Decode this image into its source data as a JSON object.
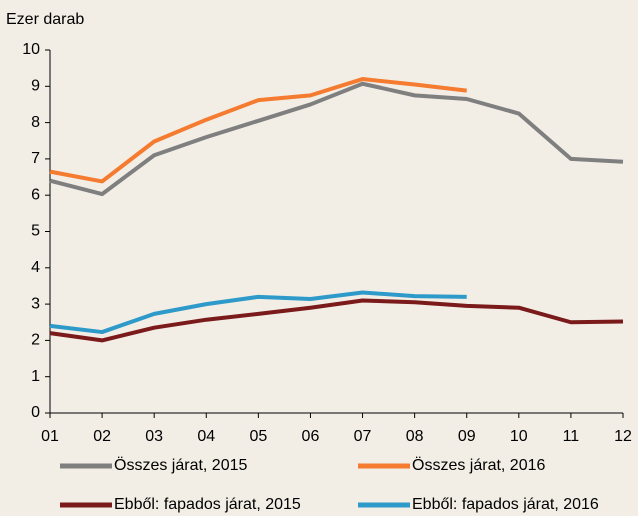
{
  "chart_data": {
    "type": "line",
    "y_axis_label": "Ezer darab",
    "categories": [
      "01",
      "02",
      "03",
      "04",
      "05",
      "06",
      "07",
      "08",
      "09",
      "10",
      "11",
      "12"
    ],
    "series": [
      {
        "name": "Összes járat, 2015",
        "color": "#7f7f7f",
        "values": [
          6.4,
          6.03,
          7.1,
          7.6,
          8.05,
          8.5,
          9.07,
          8.75,
          8.65,
          8.25,
          7.0,
          6.92
        ]
      },
      {
        "name": "Összes járat, 2016",
        "color": "#f47b30",
        "values": [
          6.65,
          6.38,
          7.48,
          8.08,
          8.62,
          8.75,
          9.2,
          9.05,
          8.88,
          null,
          null,
          null
        ]
      },
      {
        "name": "Ebből: fapados járat, 2015",
        "color": "#7b1a1a",
        "values": [
          2.2,
          2.0,
          2.35,
          2.57,
          2.73,
          2.9,
          3.1,
          3.05,
          2.95,
          2.9,
          2.5,
          2.52
        ]
      },
      {
        "name": "Ebből: fapados járat, 2016",
        "color": "#2e9ac9",
        "values": [
          2.4,
          2.23,
          2.73,
          3.0,
          3.2,
          3.14,
          3.32,
          3.22,
          3.2,
          null,
          null,
          null
        ]
      }
    ],
    "ylim": [
      0,
      10
    ],
    "yticks": [
      0,
      1,
      2,
      3,
      4,
      5,
      6,
      7,
      8,
      9,
      10
    ],
    "grid": false
  }
}
